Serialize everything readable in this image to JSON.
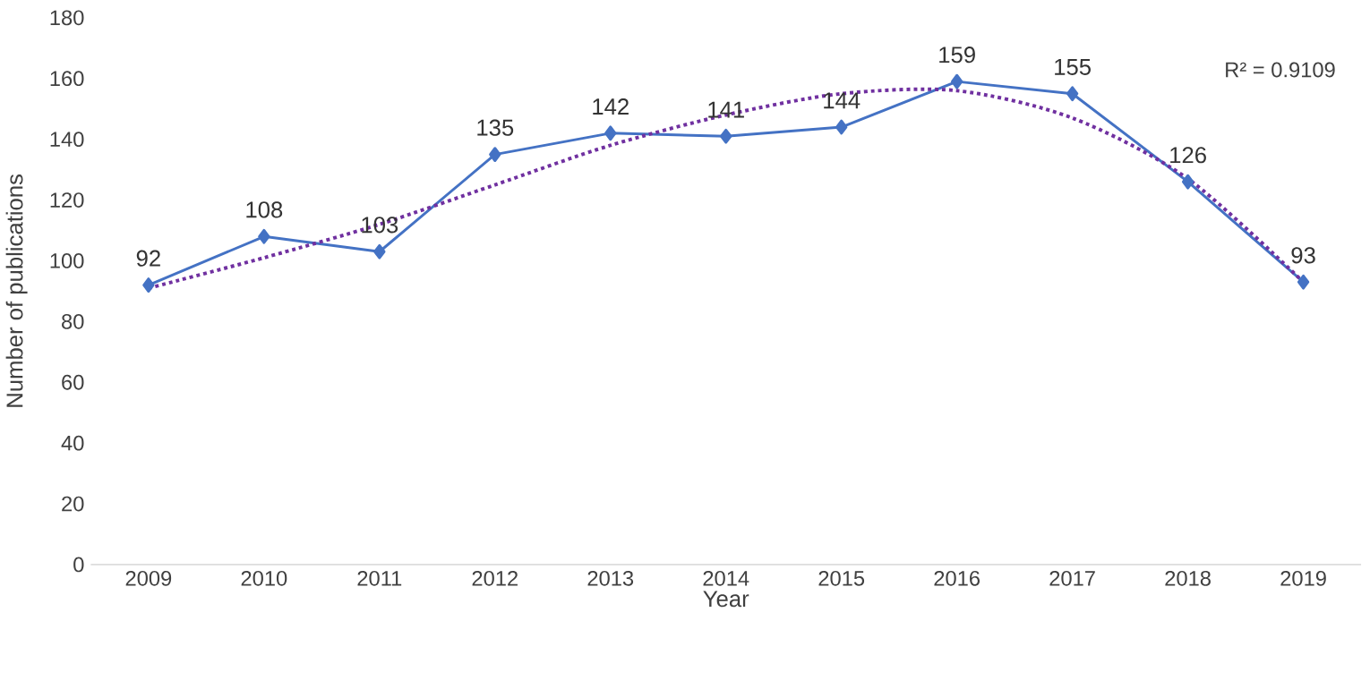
{
  "chart_data": {
    "type": "line",
    "xlabel": "Year",
    "ylabel": "Number of publications",
    "categories": [
      "2009",
      "2010",
      "2011",
      "2012",
      "2013",
      "2014",
      "2015",
      "2016",
      "2017",
      "2018",
      "2019"
    ],
    "series": [
      {
        "color": "#4472c4",
        "marker": "diamond",
        "line_style": "solid",
        "values": [
          92,
          108,
          103,
          135,
          142,
          141,
          144,
          159,
          155,
          126,
          93
        ],
        "value_labels": [
          "92",
          "108",
          "103",
          "135",
          "142",
          "141",
          "144",
          "159",
          "155",
          "126",
          "93"
        ]
      },
      {
        "color": "#7030a0",
        "marker": "none",
        "line_style": "dotted",
        "values": [
          91,
          101,
          112,
          125,
          138,
          148,
          155,
          156,
          147,
          127,
          93
        ]
      }
    ],
    "annotations": [
      "R² = 0.9109"
    ],
    "ylim": [
      0,
      180
    ],
    "yticks": [
      0,
      20,
      40,
      60,
      80,
      100,
      120,
      140,
      160,
      180
    ],
    "grid": false
  }
}
